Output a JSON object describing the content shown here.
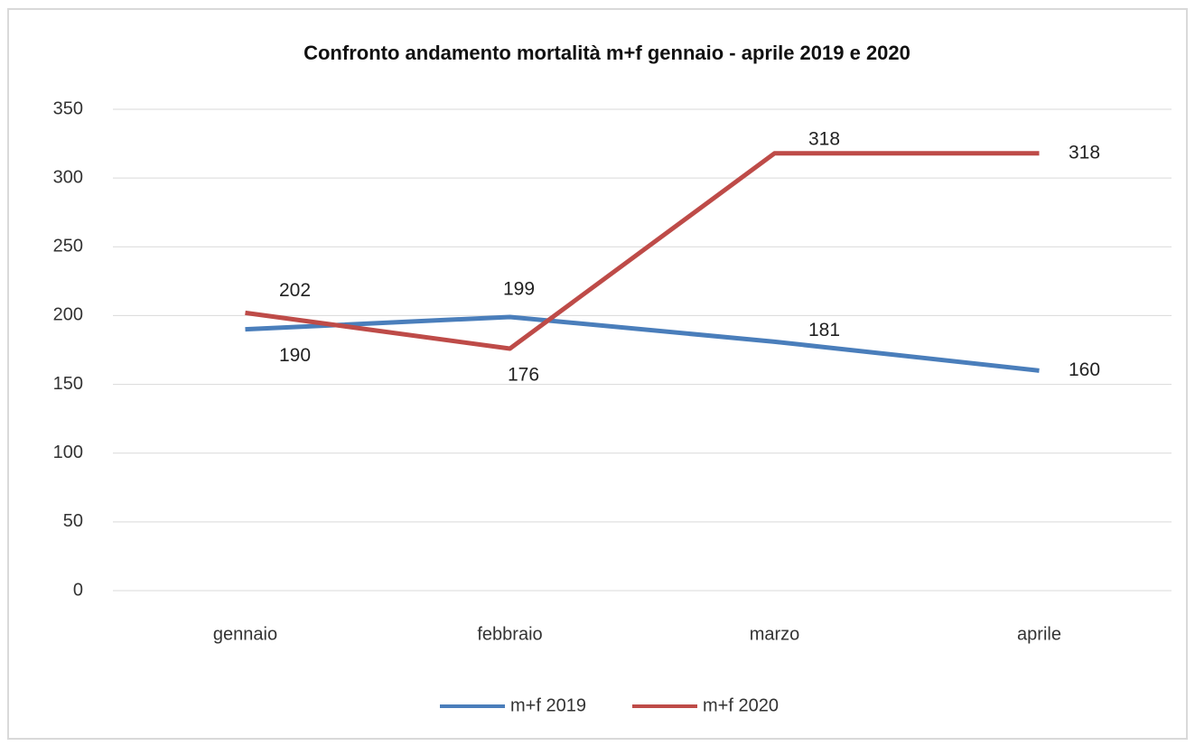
{
  "chart_data": {
    "type": "line",
    "title": "Confronto andamento mortalità m+f gennaio - aprile 2019 e 2020",
    "categories": [
      "gennaio",
      "febbraio",
      "marzo",
      "aprile"
    ],
    "series": [
      {
        "name": "m+f 2019",
        "color": "#4a7ebb",
        "values": [
          190,
          199,
          181,
          160
        ]
      },
      {
        "name": "m+f 2020",
        "color": "#be4b48",
        "values": [
          202,
          176,
          318,
          318
        ]
      }
    ],
    "ylim": [
      0,
      350
    ],
    "yticks": [
      0,
      50,
      100,
      150,
      200,
      250,
      300,
      350
    ],
    "grid": true,
    "legend": "bottom"
  }
}
